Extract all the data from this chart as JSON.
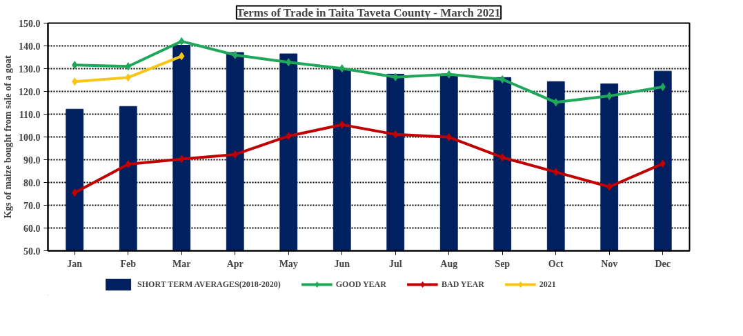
{
  "chart_data": {
    "type": "bar",
    "title": "Terms of Trade in Taita Taveta County - March 2021",
    "ylabel": "Kgs of maize bought from sale of a goat",
    "categories": [
      "Jan",
      "Feb",
      "Mar",
      "Apr",
      "May",
      "Jun",
      "Jul",
      "Aug",
      "Sep",
      "Oct",
      "Nov",
      "Dec"
    ],
    "series": [
      {
        "name": "SHORT TERM AVERAGES(2018-2020)",
        "color": "#002060",
        "values": [
          112.2,
          113.4,
          140.3,
          137.1,
          136.5,
          129.9,
          127.6,
          127.3,
          126.1,
          124.3,
          123.3,
          128.9
        ]
      },
      {
        "name": "GOOD YEAR",
        "type": "line",
        "color": "#1fa85a",
        "values": [
          131.6,
          131.0,
          142.0,
          136.0,
          132.8,
          130.1,
          126.3,
          127.5,
          125.3,
          115.2,
          118.0,
          122.0
        ]
      },
      {
        "name": "BAD YEAR",
        "type": "line",
        "color": "#c00000",
        "values": [
          75.5,
          88.0,
          90.3,
          92.3,
          100.4,
          105.4,
          101.1,
          99.9,
          91.0,
          84.6,
          78.1,
          88.3
        ]
      },
      {
        "name": "2021",
        "type": "line",
        "color": "#f5c518",
        "values": [
          124.3,
          126.1,
          135.5,
          null,
          null,
          null,
          null,
          null,
          null,
          null,
          null,
          null
        ]
      }
    ],
    "ylim": [
      50,
      150
    ],
    "yticks": [
      {
        "value": 50,
        "label": "50.0"
      },
      {
        "value": 60,
        "label": "60.0"
      },
      {
        "value": 70,
        "label": "70.0"
      },
      {
        "value": 80,
        "label": "80.0"
      },
      {
        "value": 90,
        "label": "90.0"
      },
      {
        "value": 100,
        "label": "100.0"
      },
      {
        "value": 110,
        "label": "110.0"
      },
      {
        "value": 120,
        "label": "120.0"
      },
      {
        "value": 130,
        "label": "130.0"
      },
      {
        "value": 140,
        "label": "140.0"
      },
      {
        "value": 150,
        "label": "150.0"
      }
    ],
    "grid": "y",
    "legend": "bottom",
    "marker": "diamond",
    "line_style": "solid"
  }
}
